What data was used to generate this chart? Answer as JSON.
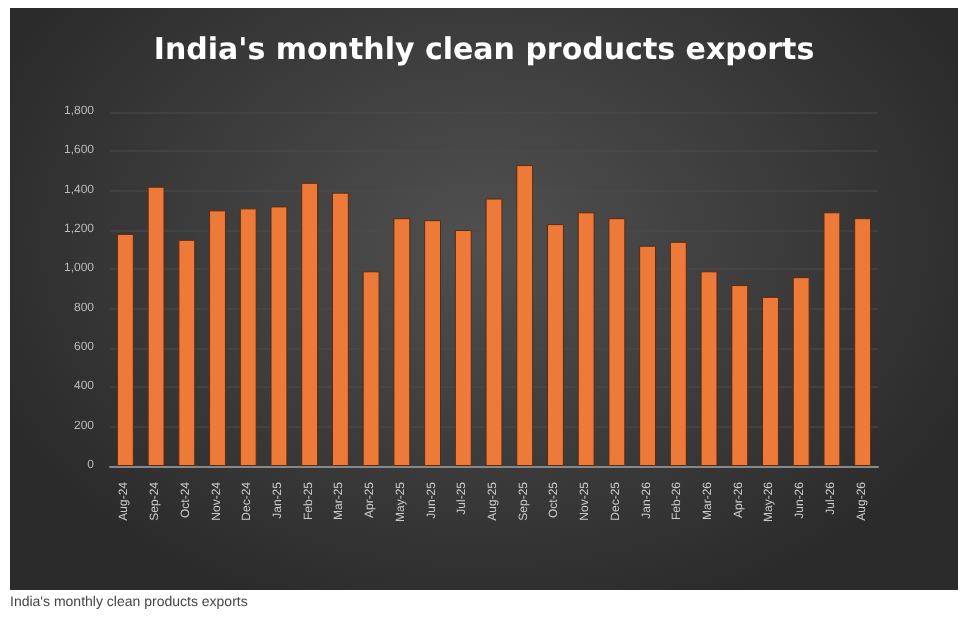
{
  "chart_data": {
    "type": "bar",
    "title": "India's monthly clean products exports",
    "categories": [
      "Aug-24",
      "Sep-24",
      "Oct-24",
      "Nov-24",
      "Dec-24",
      "Jan-25",
      "Feb-25",
      "Mar-25",
      "Apr-25",
      "May-25",
      "Jun-25",
      "Jul-25",
      "Aug-25",
      "Sep-25",
      "Oct-25",
      "Nov-25",
      "Dec-25",
      "Jan-26",
      "Feb-26",
      "Mar-26",
      "Apr-26",
      "May-26",
      "Jun-26",
      "Jul-26",
      "Aug-26"
    ],
    "values": [
      1180,
      1420,
      1150,
      1300,
      1310,
      1320,
      1440,
      1390,
      990,
      1260,
      1250,
      1200,
      1360,
      1530,
      1230,
      1290,
      1260,
      1120,
      1140,
      990,
      920,
      860,
      960,
      1290,
      1260
    ],
    "color": "#ee7a3a",
    "ylim": [
      0,
      1800
    ],
    "yticks": [
      {
        "value": 0,
        "label": "0"
      },
      {
        "value": 200,
        "label": "200"
      },
      {
        "value": 400,
        "label": "400"
      },
      {
        "value": 600,
        "label": "600"
      },
      {
        "value": 800,
        "label": "800"
      },
      {
        "value": 1000,
        "label": "1,000"
      },
      {
        "value": 1200,
        "label": "1,200"
      },
      {
        "value": 1400,
        "label": "1,400"
      },
      {
        "value": 1600,
        "label": "1,600"
      },
      {
        "value": 1800,
        "label": "1,800"
      }
    ],
    "grid": "y",
    "annotations": [
      "India's monthly clean products exports"
    ]
  }
}
